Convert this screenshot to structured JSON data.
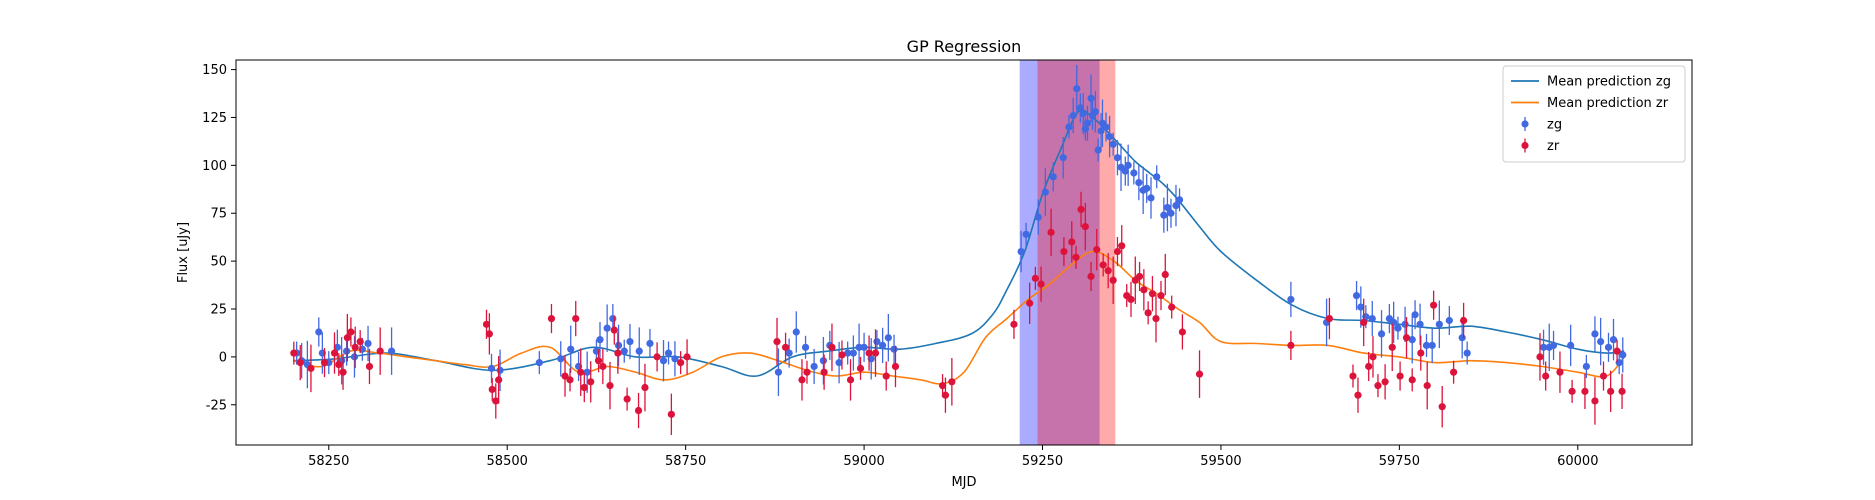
{
  "chart_data": {
    "type": "scatter",
    "title": "GP Regression",
    "xlabel": "MJD",
    "ylabel": "Flux [uJy]",
    "xlim": [
      58120,
      60160
    ],
    "ylim": [
      -46,
      155
    ],
    "xticks": [
      58250,
      58500,
      58750,
      59000,
      59250,
      59500,
      59750,
      60000
    ],
    "yticks": [
      -25,
      0,
      25,
      50,
      75,
      100,
      125,
      150
    ],
    "grid": false,
    "legend_position": "top-right",
    "legend": [
      {
        "label": "Mean prediction zg",
        "kind": "line",
        "color": "#1f77b4"
      },
      {
        "label": "Mean prediction zr",
        "kind": "line",
        "color": "#ff7f0e"
      },
      {
        "label": "zg",
        "kind": "marker",
        "color": "#4169e1"
      },
      {
        "label": "zr",
        "kind": "marker",
        "color": "#dc143c"
      }
    ],
    "shaded_regions": [
      {
        "name": "zg-window",
        "x0": 59218,
        "x1": 59330,
        "color": "#0000ff",
        "opacity": 0.33
      },
      {
        "name": "zr-window",
        "x0": 59243,
        "x1": 59352,
        "color": "#ff0000",
        "opacity": 0.33
      }
    ],
    "series": [
      {
        "name": "Mean prediction zg",
        "kind": "line",
        "color": "#1f77b4",
        "x": [
          58200,
          58260,
          58330,
          58400,
          58480,
          58560,
          58620,
          58680,
          58740,
          58800,
          58850,
          58900,
          58950,
          59000,
          59050,
          59100,
          59150,
          59180,
          59200,
          59225,
          59250,
          59275,
          59300,
          59320,
          59340,
          59360,
          59380,
          59400,
          59420,
          59440,
          59470,
          59500,
          59550,
          59600,
          59650,
          59700,
          59750,
          59800,
          59850,
          59900,
          59950,
          60000,
          60040,
          60065
        ],
        "y": [
          -2,
          -1,
          2,
          -2,
          -7,
          -2,
          5,
          0,
          0,
          -5,
          -10,
          0,
          3,
          5,
          4,
          7,
          12,
          22,
          35,
          55,
          85,
          108,
          128,
          125,
          118,
          110,
          102,
          96,
          90,
          82,
          68,
          55,
          40,
          27,
          20,
          19,
          17,
          15,
          16,
          13,
          9,
          4,
          2,
          3
        ]
      },
      {
        "name": "Mean prediction zr",
        "kind": "line",
        "color": "#ff7f0e",
        "x": [
          58200,
          58240,
          58280,
          58320,
          58360,
          58400,
          58440,
          58480,
          58520,
          58560,
          58600,
          58640,
          58680,
          58720,
          58760,
          58800,
          58840,
          58880,
          58920,
          58960,
          59000,
          59040,
          59080,
          59110,
          59140,
          59170,
          59200,
          59230,
          59260,
          59290,
          59320,
          59350,
          59380,
          59410,
          59440,
          59470,
          59500,
          59550,
          59600,
          59650,
          59700,
          59750,
          59800,
          59850,
          59900,
          59950,
          60000,
          60040,
          60065
        ],
        "y": [
          -2,
          -5,
          3,
          2,
          0,
          -2,
          -4,
          -5,
          2,
          5,
          -8,
          -5,
          -8,
          -12,
          -8,
          0,
          2,
          -2,
          -7,
          -10,
          -8,
          -10,
          -12,
          -14,
          -8,
          10,
          20,
          30,
          38,
          48,
          55,
          50,
          40,
          33,
          25,
          18,
          8,
          7,
          6,
          6,
          2,
          0,
          -3,
          -2,
          -3,
          -5,
          -8,
          -10,
          0
        ]
      },
      {
        "name": "zg",
        "kind": "errorbar",
        "color": "#4169e1",
        "x": [
          58205,
          58212,
          58220,
          58236,
          58241,
          58250,
          58262,
          58268,
          58275,
          58286,
          58297,
          58305,
          58338,
          58478,
          58490,
          58545,
          58575,
          58589,
          58600,
          58612,
          58625,
          58630,
          58640,
          58648,
          58656,
          58664,
          58672,
          58685,
          58700,
          58719,
          58726,
          58735,
          58880,
          58895,
          58905,
          58918,
          58930,
          58943,
          58952,
          58965,
          58977,
          58985,
          58993,
          59000,
          59010,
          59018,
          59026,
          59034,
          59042,
          59220,
          59227,
          59244,
          59254,
          59265,
          59279,
          59287,
          59293,
          59298,
          59303,
          59307,
          59310,
          59313,
          59318,
          59320,
          59324,
          59328,
          59332,
          59334,
          59339,
          59344,
          59349,
          59355,
          59360,
          59366,
          59370,
          59378,
          59385,
          59391,
          59396,
          59402,
          59410,
          59420,
          59425,
          59430,
          59437,
          59442,
          59598,
          59648,
          59690,
          59696,
          59703,
          59712,
          59725,
          59736,
          59742,
          59748,
          59758,
          59768,
          59772,
          59779,
          59788,
          59796,
          59806,
          59820,
          59838,
          59845,
          59952,
          59960,
          59966,
          59990,
          60012,
          60024,
          60032,
          60043,
          60050,
          60058,
          60063
        ],
        "y": [
          2,
          -2,
          -4,
          13,
          2,
          -3,
          5,
          -2,
          3,
          0,
          4,
          7,
          3,
          -6,
          -7,
          -3,
          -1,
          4,
          -5,
          -8,
          3,
          9,
          15,
          20,
          6,
          3,
          8,
          3,
          7,
          -2,
          2,
          -1,
          -8,
          2,
          13,
          5,
          -5,
          -2,
          6,
          -3,
          2,
          2,
          5,
          5,
          -1,
          8,
          6,
          10,
          4,
          55,
          64,
          73,
          86,
          94,
          104,
          120,
          126,
          140,
          130,
          127,
          119,
          122,
          135,
          126,
          128,
          108,
          118,
          122,
          120,
          115,
          111,
          104,
          99,
          97,
          100,
          96,
          91,
          87,
          88,
          83,
          94,
          74,
          78,
          75,
          79,
          82,
          30,
          18,
          32,
          26,
          21,
          20,
          12,
          20,
          18,
          15,
          17,
          9,
          22,
          17,
          6,
          6,
          17,
          19,
          10,
          2,
          5,
          5,
          6,
          6,
          -5,
          12,
          8,
          5,
          9,
          -3,
          1
        ]
      },
      {
        "name": "zr",
        "kind": "errorbar",
        "color": "#dc143c",
        "x": [
          58201,
          58210,
          58225,
          58244,
          58258,
          58264,
          58270,
          58276,
          58281,
          58287,
          58294,
          58307,
          58322,
          58471,
          58475,
          58479,
          58484,
          58488,
          58562,
          58581,
          58588,
          58596,
          58603,
          58608,
          58617,
          58628,
          58634,
          58644,
          58650,
          58655,
          58668,
          58684,
          58693,
          58710,
          58730,
          58743,
          58752,
          58878,
          58890,
          58913,
          58920,
          58944,
          58955,
          58969,
          58981,
          58995,
          59007,
          59016,
          59031,
          59044,
          59110,
          59114,
          59123,
          59210,
          59232,
          59240,
          59248,
          59262,
          59280,
          59291,
          59297,
          59304,
          59310,
          59318,
          59326,
          59335,
          59342,
          59349,
          59355,
          59361,
          59368,
          59374,
          59380,
          59386,
          59392,
          59398,
          59404,
          59409,
          59416,
          59422,
          59431,
          59446,
          59470,
          59598,
          59652,
          59685,
          59692,
          59700,
          59707,
          59713,
          59720,
          59730,
          59740,
          59751,
          59760,
          59768,
          59780,
          59789,
          59798,
          59810,
          59826,
          59840,
          59947,
          59955,
          59975,
          59992,
          60010,
          60024,
          60036,
          60046,
          60055,
          60062
        ],
        "y": [
          2,
          -3,
          -6,
          -3,
          2,
          -4,
          -8,
          10,
          13,
          5,
          8,
          -5,
          3,
          17,
          12,
          -17,
          -23,
          -12,
          20,
          -10,
          -12,
          20,
          -8,
          -16,
          -13,
          -2,
          -5,
          -15,
          14,
          2,
          -22,
          -28,
          -16,
          0,
          -30,
          -3,
          0,
          8,
          5,
          -12,
          -8,
          -8,
          5,
          1,
          -12,
          -6,
          2,
          2,
          -10,
          -5,
          -15,
          -20,
          -13,
          17,
          28,
          41,
          38,
          65,
          55,
          60,
          52,
          77,
          68,
          42,
          56,
          48,
          45,
          40,
          55,
          58,
          32,
          30,
          40,
          42,
          35,
          23,
          33,
          20,
          32,
          43,
          26,
          13,
          -9,
          6,
          20,
          -10,
          -20,
          18,
          -5,
          0,
          -15,
          -13,
          5,
          -10,
          10,
          -12,
          2,
          -15,
          27,
          -26,
          -8,
          19,
          0,
          -10,
          -8,
          -18,
          -18,
          -23,
          -10,
          -18,
          3,
          -18
        ]
      }
    ]
  }
}
